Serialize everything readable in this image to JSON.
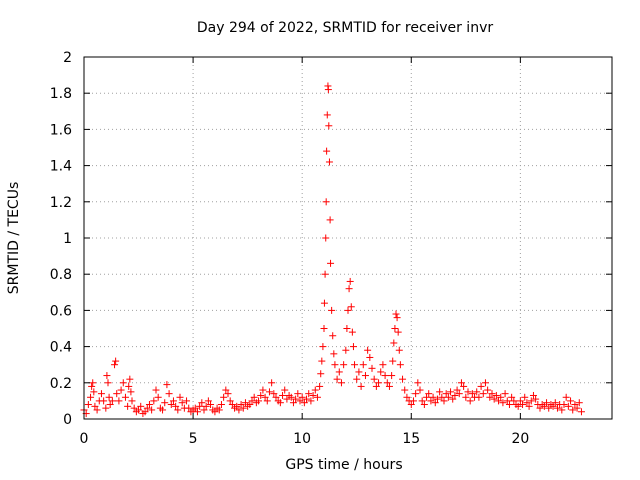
{
  "chart_data": {
    "type": "scatter",
    "title": "Day 294 of 2022, SRMTID for receiver invr",
    "xlabel": "GPS time / hours",
    "ylabel": "SRMTID / TECUs",
    "xlim": [
      0,
      24.2
    ],
    "ylim": [
      0,
      2
    ],
    "xticks": [
      0,
      5,
      10,
      15,
      20
    ],
    "xtick_labels": [
      "0",
      "5",
      "10",
      "15",
      "20"
    ],
    "yticks": [
      0,
      0.2,
      0.4,
      0.6,
      0.8,
      1,
      1.2,
      1.4,
      1.6,
      1.8,
      2
    ],
    "ytick_labels": [
      "0",
      "0.2",
      "0.4",
      "0.6",
      "0.8",
      "1",
      "1.2",
      "1.4",
      "1.6",
      "1.8",
      "2"
    ],
    "grid": true,
    "marker": "+",
    "series": [
      {
        "name": "SRMTID",
        "color": "#ff0000",
        "points": [
          [
            0.0,
            0.05
          ],
          [
            0.1,
            0.03
          ],
          [
            0.2,
            0.08
          ],
          [
            0.3,
            0.12
          ],
          [
            0.35,
            0.18
          ],
          [
            0.4,
            0.2
          ],
          [
            0.45,
            0.15
          ],
          [
            0.5,
            0.07
          ],
          [
            0.6,
            0.05
          ],
          [
            0.7,
            0.1
          ],
          [
            0.8,
            0.14
          ],
          [
            0.9,
            0.1
          ],
          [
            1.0,
            0.06
          ],
          [
            1.05,
            0.24
          ],
          [
            1.1,
            0.2
          ],
          [
            1.15,
            0.12
          ],
          [
            1.2,
            0.08
          ],
          [
            1.3,
            0.1
          ],
          [
            1.4,
            0.3
          ],
          [
            1.45,
            0.32
          ],
          [
            1.5,
            0.14
          ],
          [
            1.6,
            0.1
          ],
          [
            1.7,
            0.16
          ],
          [
            1.8,
            0.2
          ],
          [
            1.9,
            0.12
          ],
          [
            2.0,
            0.07
          ],
          [
            2.05,
            0.18
          ],
          [
            2.1,
            0.22
          ],
          [
            2.15,
            0.15
          ],
          [
            2.2,
            0.1
          ],
          [
            2.3,
            0.06
          ],
          [
            2.4,
            0.04
          ],
          [
            2.5,
            0.05
          ],
          [
            2.6,
            0.07
          ],
          [
            2.7,
            0.03
          ],
          [
            2.8,
            0.04
          ],
          [
            2.9,
            0.06
          ],
          [
            3.0,
            0.08
          ],
          [
            3.1,
            0.05
          ],
          [
            3.2,
            0.1
          ],
          [
            3.3,
            0.16
          ],
          [
            3.4,
            0.12
          ],
          [
            3.5,
            0.06
          ],
          [
            3.6,
            0.05
          ],
          [
            3.7,
            0.09
          ],
          [
            3.8,
            0.19
          ],
          [
            3.9,
            0.14
          ],
          [
            4.0,
            0.08
          ],
          [
            4.1,
            0.1
          ],
          [
            4.2,
            0.07
          ],
          [
            4.3,
            0.05
          ],
          [
            4.4,
            0.12
          ],
          [
            4.5,
            0.09
          ],
          [
            4.6,
            0.06
          ],
          [
            4.7,
            0.1
          ],
          [
            4.8,
            0.06
          ],
          [
            4.9,
            0.04
          ],
          [
            5.0,
            0.05
          ],
          [
            5.1,
            0.06
          ],
          [
            5.2,
            0.04
          ],
          [
            5.3,
            0.07
          ],
          [
            5.4,
            0.09
          ],
          [
            5.5,
            0.05
          ],
          [
            5.6,
            0.07
          ],
          [
            5.7,
            0.1
          ],
          [
            5.8,
            0.08
          ],
          [
            5.9,
            0.05
          ],
          [
            6.0,
            0.04
          ],
          [
            6.1,
            0.06
          ],
          [
            6.2,
            0.05
          ],
          [
            6.3,
            0.08
          ],
          [
            6.4,
            0.12
          ],
          [
            6.5,
            0.16
          ],
          [
            6.6,
            0.14
          ],
          [
            6.7,
            0.1
          ],
          [
            6.8,
            0.08
          ],
          [
            6.9,
            0.06
          ],
          [
            7.0,
            0.07
          ],
          [
            7.1,
            0.05
          ],
          [
            7.2,
            0.08
          ],
          [
            7.3,
            0.06
          ],
          [
            7.4,
            0.09
          ],
          [
            7.5,
            0.07
          ],
          [
            7.6,
            0.08
          ],
          [
            7.7,
            0.1
          ],
          [
            7.8,
            0.12
          ],
          [
            7.9,
            0.09
          ],
          [
            8.0,
            0.1
          ],
          [
            8.1,
            0.13
          ],
          [
            8.2,
            0.16
          ],
          [
            8.3,
            0.12
          ],
          [
            8.4,
            0.1
          ],
          [
            8.5,
            0.15
          ],
          [
            8.6,
            0.2
          ],
          [
            8.7,
            0.14
          ],
          [
            8.8,
            0.12
          ],
          [
            8.9,
            0.1
          ],
          [
            9.0,
            0.09
          ],
          [
            9.1,
            0.13
          ],
          [
            9.2,
            0.16
          ],
          [
            9.3,
            0.11
          ],
          [
            9.4,
            0.13
          ],
          [
            9.5,
            0.12
          ],
          [
            9.6,
            0.09
          ],
          [
            9.7,
            0.11
          ],
          [
            9.8,
            0.14
          ],
          [
            9.9,
            0.1
          ],
          [
            10.0,
            0.12
          ],
          [
            10.1,
            0.09
          ],
          [
            10.2,
            0.11
          ],
          [
            10.3,
            0.14
          ],
          [
            10.4,
            0.1
          ],
          [
            10.5,
            0.13
          ],
          [
            10.6,
            0.16
          ],
          [
            10.7,
            0.12
          ],
          [
            10.8,
            0.18
          ],
          [
            10.85,
            0.25
          ],
          [
            10.9,
            0.32
          ],
          [
            10.95,
            0.4
          ],
          [
            11.0,
            0.5
          ],
          [
            11.02,
            0.64
          ],
          [
            11.05,
            0.8
          ],
          [
            11.08,
            1.0
          ],
          [
            11.1,
            1.2
          ],
          [
            11.12,
            1.48
          ],
          [
            11.15,
            1.68
          ],
          [
            11.18,
            1.84
          ],
          [
            11.2,
            1.82
          ],
          [
            11.22,
            1.62
          ],
          [
            11.25,
            1.42
          ],
          [
            11.28,
            1.1
          ],
          [
            11.3,
            0.86
          ],
          [
            11.35,
            0.6
          ],
          [
            11.4,
            0.46
          ],
          [
            11.45,
            0.36
          ],
          [
            11.5,
            0.3
          ],
          [
            11.6,
            0.22
          ],
          [
            11.7,
            0.26
          ],
          [
            11.8,
            0.2
          ],
          [
            11.9,
            0.3
          ],
          [
            12.0,
            0.38
          ],
          [
            12.05,
            0.5
          ],
          [
            12.1,
            0.6
          ],
          [
            12.15,
            0.72
          ],
          [
            12.2,
            0.76
          ],
          [
            12.25,
            0.62
          ],
          [
            12.3,
            0.48
          ],
          [
            12.35,
            0.4
          ],
          [
            12.4,
            0.3
          ],
          [
            12.5,
            0.22
          ],
          [
            12.6,
            0.26
          ],
          [
            12.7,
            0.18
          ],
          [
            12.8,
            0.3
          ],
          [
            12.9,
            0.24
          ],
          [
            13.0,
            0.38
          ],
          [
            13.1,
            0.34
          ],
          [
            13.2,
            0.28
          ],
          [
            13.3,
            0.22
          ],
          [
            13.4,
            0.18
          ],
          [
            13.5,
            0.2
          ],
          [
            13.6,
            0.26
          ],
          [
            13.7,
            0.3
          ],
          [
            13.8,
            0.24
          ],
          [
            13.9,
            0.2
          ],
          [
            14.0,
            0.18
          ],
          [
            14.1,
            0.24
          ],
          [
            14.15,
            0.32
          ],
          [
            14.2,
            0.42
          ],
          [
            14.25,
            0.5
          ],
          [
            14.3,
            0.58
          ],
          [
            14.35,
            0.56
          ],
          [
            14.4,
            0.48
          ],
          [
            14.45,
            0.38
          ],
          [
            14.5,
            0.3
          ],
          [
            14.6,
            0.22
          ],
          [
            14.7,
            0.16
          ],
          [
            14.8,
            0.12
          ],
          [
            14.9,
            0.1
          ],
          [
            15.0,
            0.08
          ],
          [
            15.1,
            0.1
          ],
          [
            15.2,
            0.14
          ],
          [
            15.3,
            0.2
          ],
          [
            15.4,
            0.16
          ],
          [
            15.5,
            0.1
          ],
          [
            15.6,
            0.08
          ],
          [
            15.7,
            0.12
          ],
          [
            15.8,
            0.14
          ],
          [
            15.9,
            0.1
          ],
          [
            16.0,
            0.12
          ],
          [
            16.1,
            0.09
          ],
          [
            16.2,
            0.11
          ],
          [
            16.3,
            0.15
          ],
          [
            16.4,
            0.12
          ],
          [
            16.5,
            0.1
          ],
          [
            16.6,
            0.14
          ],
          [
            16.7,
            0.12
          ],
          [
            16.8,
            0.15
          ],
          [
            16.9,
            0.11
          ],
          [
            17.0,
            0.13
          ],
          [
            17.1,
            0.16
          ],
          [
            17.2,
            0.14
          ],
          [
            17.3,
            0.2
          ],
          [
            17.4,
            0.18
          ],
          [
            17.5,
            0.12
          ],
          [
            17.6,
            0.15
          ],
          [
            17.7,
            0.1
          ],
          [
            17.8,
            0.14
          ],
          [
            17.9,
            0.12
          ],
          [
            18.0,
            0.15
          ],
          [
            18.1,
            0.12
          ],
          [
            18.2,
            0.18
          ],
          [
            18.3,
            0.14
          ],
          [
            18.4,
            0.2
          ],
          [
            18.5,
            0.16
          ],
          [
            18.6,
            0.12
          ],
          [
            18.7,
            0.14
          ],
          [
            18.8,
            0.11
          ],
          [
            18.9,
            0.13
          ],
          [
            19.0,
            0.1
          ],
          [
            19.1,
            0.12
          ],
          [
            19.2,
            0.09
          ],
          [
            19.3,
            0.14
          ],
          [
            19.4,
            0.1
          ],
          [
            19.5,
            0.08
          ],
          [
            19.6,
            0.12
          ],
          [
            19.7,
            0.1
          ],
          [
            19.8,
            0.08
          ],
          [
            19.9,
            0.07
          ],
          [
            20.0,
            0.1
          ],
          [
            20.1,
            0.08
          ],
          [
            20.2,
            0.12
          ],
          [
            20.3,
            0.09
          ],
          [
            20.4,
            0.07
          ],
          [
            20.5,
            0.1
          ],
          [
            20.6,
            0.13
          ],
          [
            20.7,
            0.11
          ],
          [
            20.8,
            0.08
          ],
          [
            20.9,
            0.06
          ],
          [
            21.0,
            0.08
          ],
          [
            21.1,
            0.07
          ],
          [
            21.2,
            0.09
          ],
          [
            21.3,
            0.06
          ],
          [
            21.4,
            0.08
          ],
          [
            21.5,
            0.07
          ],
          [
            21.6,
            0.09
          ],
          [
            21.7,
            0.06
          ],
          [
            21.8,
            0.08
          ],
          [
            21.9,
            0.05
          ],
          [
            22.0,
            0.08
          ],
          [
            22.1,
            0.12
          ],
          [
            22.2,
            0.07
          ],
          [
            22.3,
            0.1
          ],
          [
            22.4,
            0.05
          ],
          [
            22.5,
            0.08
          ],
          [
            22.6,
            0.06
          ],
          [
            22.7,
            0.09
          ],
          [
            22.8,
            0.04
          ]
        ]
      }
    ]
  }
}
